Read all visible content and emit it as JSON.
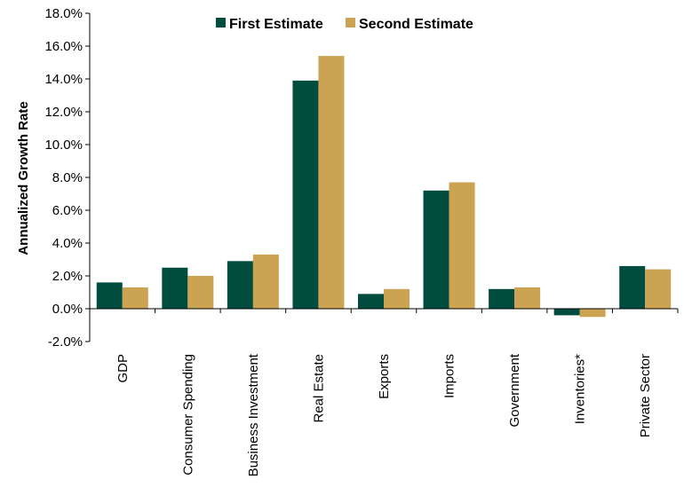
{
  "chart_data": {
    "type": "bar",
    "title": "",
    "xlabel": "",
    "ylabel": "Annualized Growth Rate",
    "ylim": [
      -2.0,
      18.0
    ],
    "yticks": [
      -2.0,
      0.0,
      2.0,
      4.0,
      6.0,
      8.0,
      10.0,
      12.0,
      14.0,
      16.0,
      18.0
    ],
    "ytick_labels": [
      "-2.0%",
      "0.0%",
      "2.0%",
      "4.0%",
      "6.0%",
      "8.0%",
      "10.0%",
      "12.0%",
      "14.0%",
      "16.0%",
      "18.0%"
    ],
    "grid": false,
    "legend_position": "top",
    "categories": [
      "GDP",
      "Consumer Spending",
      "Business Investment",
      "Real Estate",
      "Exports",
      "Imports",
      "Government",
      "Inventories*",
      "Private Sector"
    ],
    "series": [
      {
        "name": "First Estimate",
        "color": "#004d40",
        "values": [
          1.6,
          2.5,
          2.9,
          13.9,
          0.9,
          7.2,
          1.2,
          -0.4,
          2.6
        ]
      },
      {
        "name": "Second Estimate",
        "color": "#cca352",
        "values": [
          1.3,
          2.0,
          3.3,
          15.4,
          1.2,
          7.7,
          1.3,
          -0.5,
          2.4
        ]
      }
    ]
  }
}
